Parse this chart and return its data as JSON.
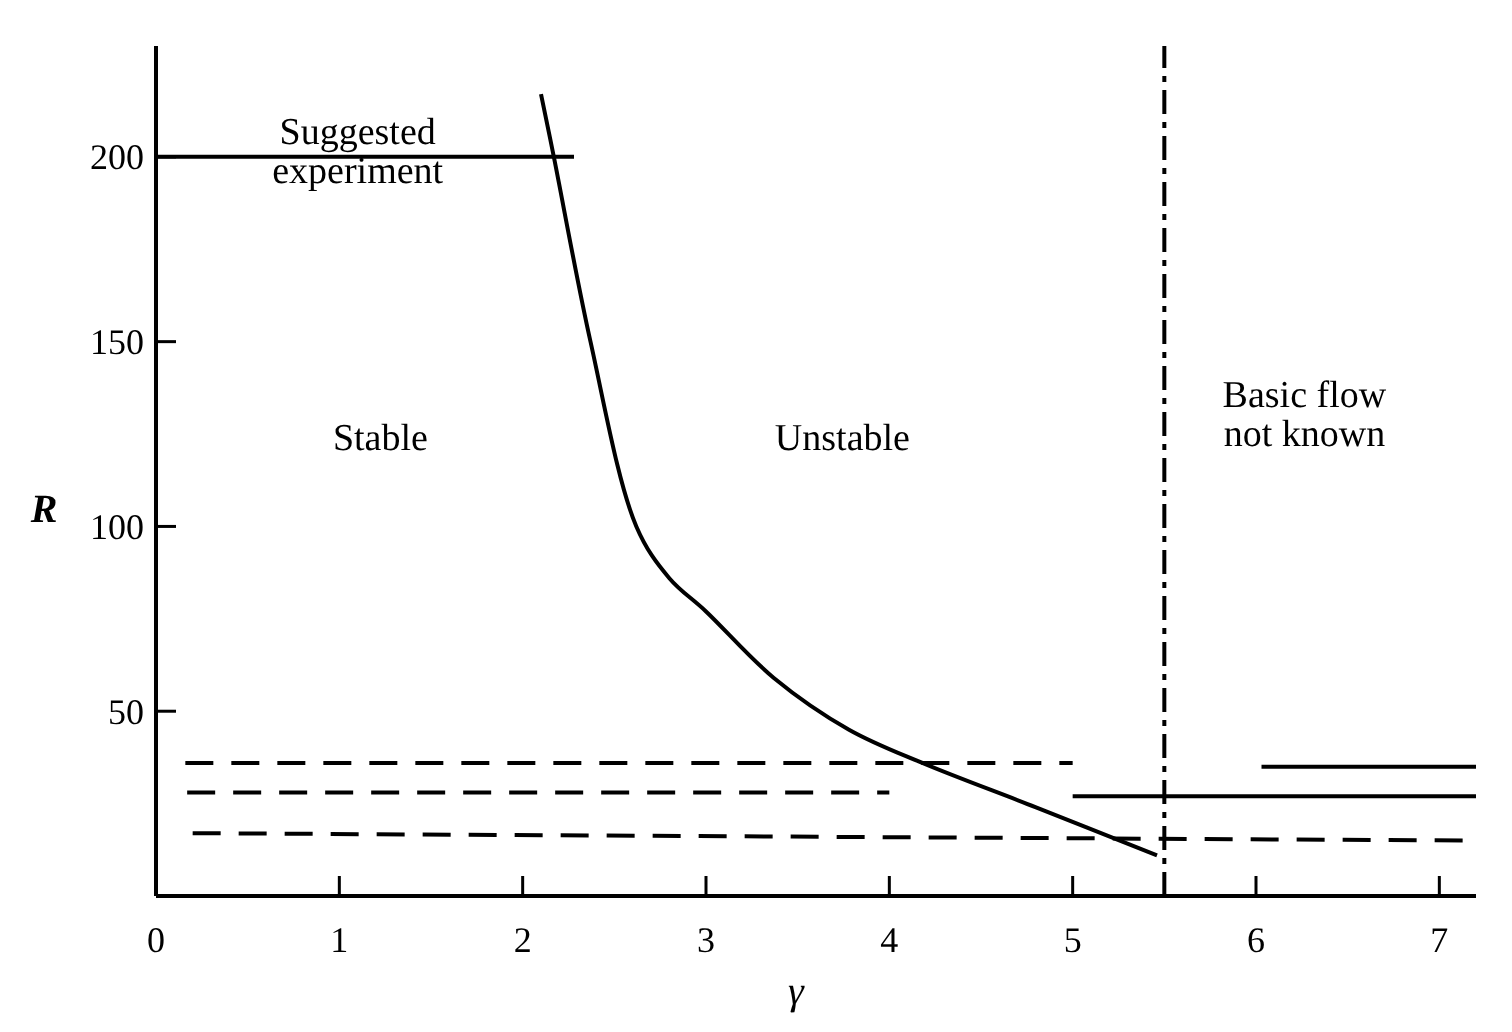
{
  "chart_data": {
    "type": "line",
    "xlabel": "γ",
    "ylabel": "R",
    "xlim": [
      0,
      7.2
    ],
    "ylim": [
      0,
      230
    ],
    "xticks": [
      0,
      1,
      2,
      3,
      4,
      5,
      6,
      7
    ],
    "yticks": [
      50,
      100,
      150,
      200
    ],
    "grid": false,
    "marker": "none",
    "series": [
      {
        "color": "#000000",
        "line_style": "solid",
        "x": [
          2.1,
          2.17,
          2.37,
          2.62,
          2.8,
          3.0,
          3.37,
          3.78,
          4.18,
          4.8,
          5.46
        ],
        "values": [
          217,
          200,
          150,
          100,
          86,
          77,
          59,
          45,
          36,
          24,
          11
        ]
      },
      {
        "color": "#000000",
        "line_style": "solid",
        "x": [
          0,
          2.28
        ],
        "values": [
          200,
          200
        ]
      },
      {
        "color": "#000000",
        "line_style": "dashed",
        "x": [
          0.16,
          5.0
        ],
        "values": [
          36,
          36
        ]
      },
      {
        "color": "#000000",
        "line_style": "dashed",
        "x": [
          0.17,
          4.0
        ],
        "values": [
          28,
          28
        ]
      },
      {
        "color": "#000000",
        "line_style": "dashed",
        "x": [
          0.2,
          7.2
        ],
        "values": [
          17,
          15
        ]
      },
      {
        "color": "#000000",
        "line_style": "solid",
        "x": [
          6.03,
          7.2
        ],
        "values": [
          35,
          35
        ]
      },
      {
        "color": "#000000",
        "line_style": "solid",
        "x": [
          5.0,
          7.2
        ],
        "values": [
          27,
          27
        ]
      }
    ],
    "ref_lines": [
      {
        "axis": "x",
        "value": 5.5,
        "line_style": "dashdot",
        "color": "#000000"
      }
    ],
    "annotations": [
      {
        "text": "Suggested experiment",
        "x": 1.1,
        "y": 200
      },
      "Stable",
      "Unstable",
      "Basic flow not known"
    ]
  }
}
